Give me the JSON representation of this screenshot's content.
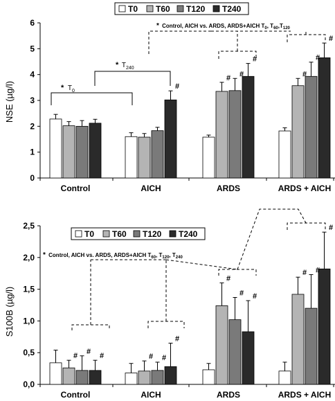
{
  "chart_data": [
    {
      "type": "bar",
      "ylabel": "NSE (µg/l)",
      "ylim": [
        0,
        6
      ],
      "yticks": [
        "0",
        "1",
        "2",
        "3",
        "4",
        "5",
        "6"
      ],
      "categories": [
        "Control",
        "AICH",
        "ARDS",
        "ARDS + AICH"
      ],
      "legend": {
        "placement": "top-center",
        "boxed": true
      },
      "series": [
        {
          "name": "T0",
          "color": "#ffffff",
          "values": [
            2.28,
            1.6,
            1.58,
            1.82
          ],
          "errors": [
            0.18,
            0.15,
            0.08,
            0.12
          ]
        },
        {
          "name": "T60",
          "color": "#b4b4b4",
          "values": [
            2.02,
            1.58,
            3.35,
            3.57
          ],
          "errors": [
            0.16,
            0.14,
            0.35,
            0.28
          ]
        },
        {
          "name": "T120",
          "color": "#7a7a7a",
          "values": [
            2.0,
            1.83,
            3.38,
            3.93
          ],
          "errors": [
            0.22,
            0.13,
            0.47,
            0.55
          ]
        },
        {
          "name": "T240",
          "color": "#2a2a2a",
          "values": [
            2.12,
            3.02,
            3.93,
            4.65
          ],
          "errors": [
            0.15,
            0.35,
            0.5,
            0.57
          ]
        }
      ],
      "marks": [
        {
          "series": 1,
          "category": 2,
          "symbol": "#"
        },
        {
          "series": 2,
          "category": 2,
          "symbol": "#"
        },
        {
          "series": 3,
          "category": 2,
          "symbol": "#"
        },
        {
          "series": 1,
          "category": 3,
          "symbol": "#"
        },
        {
          "series": 2,
          "category": 3,
          "symbol": "#"
        },
        {
          "series": 3,
          "category": 3,
          "symbol": "#"
        },
        {
          "series": 3,
          "category": 1,
          "symbol": "#"
        }
      ],
      "annotations": [
        {
          "id": "t0",
          "star": "*",
          "main": "T",
          "sub": "0"
        },
        {
          "id": "t240",
          "star": "*",
          "main": "T",
          "sub": "240"
        },
        {
          "id": "cmp",
          "star": "*",
          "main": "Control, AICH vs. ARDS, ARDS+AICH  T",
          "sub": "0",
          "rest": ", T",
          "sub2": "60",
          "rest2": ",T",
          "sub3": "120"
        }
      ]
    },
    {
      "type": "bar",
      "ylabel": "S100B (µg/l)",
      "ylim": [
        0,
        2.5
      ],
      "yticks": [
        "0,0",
        "0,5",
        "1,0",
        "1,5",
        "2,0",
        "2,5"
      ],
      "categories": [
        "Control",
        "AICH",
        "ARDS",
        "ARDS + AICH"
      ],
      "legend": {
        "placement": "top-left",
        "boxed": true
      },
      "series": [
        {
          "name": "T0",
          "color": "#ffffff",
          "values": [
            0.34,
            0.18,
            0.23,
            0.21
          ],
          "errors": [
            0.2,
            0.15,
            0.1,
            0.14
          ]
        },
        {
          "name": "T60",
          "color": "#b4b4b4",
          "values": [
            0.26,
            0.21,
            1.24,
            1.42
          ],
          "errors": [
            0.12,
            0.16,
            0.36,
            0.27
          ]
        },
        {
          "name": "T120",
          "color": "#7a7a7a",
          "values": [
            0.22,
            0.22,
            1.02,
            1.2
          ],
          "errors": [
            0.23,
            0.13,
            0.35,
            0.53
          ]
        },
        {
          "name": "T240",
          "color": "#2a2a2a",
          "values": [
            0.22,
            0.28,
            0.83,
            1.82
          ],
          "errors": [
            0.16,
            0.37,
            0.49,
            0.58
          ]
        }
      ],
      "marks": [
        {
          "series": 1,
          "category": 0,
          "symbol": "#"
        },
        {
          "series": 2,
          "category": 0,
          "symbol": "#"
        },
        {
          "series": 3,
          "category": 0,
          "symbol": "#"
        },
        {
          "series": 1,
          "category": 1,
          "symbol": "#"
        },
        {
          "series": 2,
          "category": 1,
          "symbol": "#"
        },
        {
          "series": 3,
          "category": 1,
          "symbol": "#"
        },
        {
          "series": 1,
          "category": 2,
          "symbol": "#"
        },
        {
          "series": 2,
          "category": 2,
          "symbol": "#"
        },
        {
          "series": 3,
          "category": 2,
          "symbol": "#"
        },
        {
          "series": 1,
          "category": 3,
          "symbol": "#"
        },
        {
          "series": 2,
          "category": 3,
          "symbol": "#"
        },
        {
          "series": 3,
          "category": 3,
          "symbol": "#"
        }
      ],
      "annotations": [
        {
          "id": "cmp",
          "star": "*",
          "main": "Control, AICH vs. ARDS, ARDS+AICH T",
          "sub": "60",
          "rest": ", T",
          "sub2": "120",
          "rest2": ", T",
          "sub3": "240"
        }
      ]
    }
  ]
}
